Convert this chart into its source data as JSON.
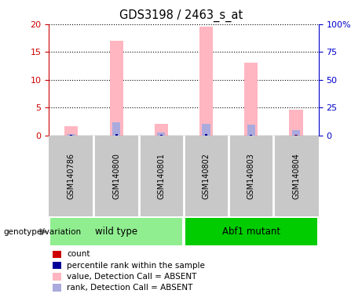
{
  "title": "GDS3198 / 2463_s_at",
  "samples": [
    "GSM140786",
    "GSM140800",
    "GSM140801",
    "GSM140802",
    "GSM140803",
    "GSM140804"
  ],
  "pink_values": [
    1.6,
    17.0,
    2.1,
    19.6,
    13.1,
    4.6
  ],
  "blue_values": [
    0.3,
    2.3,
    0.5,
    2.1,
    1.9,
    1.0
  ],
  "red_values": [
    0.12,
    0.18,
    0.1,
    0.16,
    0.14,
    0.12
  ],
  "dark_blue_values": [
    0.15,
    0.22,
    0.12,
    0.2,
    0.18,
    0.14
  ],
  "ylim_left": [
    0,
    20
  ],
  "ylim_right": [
    0,
    100
  ],
  "yticks_left": [
    0,
    5,
    10,
    15,
    20
  ],
  "yticks_right": [
    0,
    25,
    50,
    75,
    100
  ],
  "ytick_labels_left": [
    "0",
    "5",
    "10",
    "15",
    "20"
  ],
  "ytick_labels_right": [
    "0",
    "25",
    "50",
    "75",
    "100%"
  ],
  "left_tick_color": "#CC0000",
  "right_tick_color": "#0000CC",
  "pink_color": "#FFB6C1",
  "light_blue_color": "#AAAADD",
  "red_color": "#CC0000",
  "dark_blue_color": "#000099",
  "sample_bg_color": "#C8C8C8",
  "wt_color": "#90EE90",
  "mut_color": "#00CC00",
  "plot_bg": "#FFFFFF",
  "legend_items": [
    {
      "label": "count",
      "color": "#CC0000"
    },
    {
      "label": "percentile rank within the sample",
      "color": "#000099"
    },
    {
      "label": "value, Detection Call = ABSENT",
      "color": "#FFB6C1"
    },
    {
      "label": "rank, Detection Call = ABSENT",
      "color": "#AAAADD"
    }
  ],
  "genotype_label": "genotype/variation",
  "wt_label": "wild type",
  "mut_label": "Abf1 mutant"
}
